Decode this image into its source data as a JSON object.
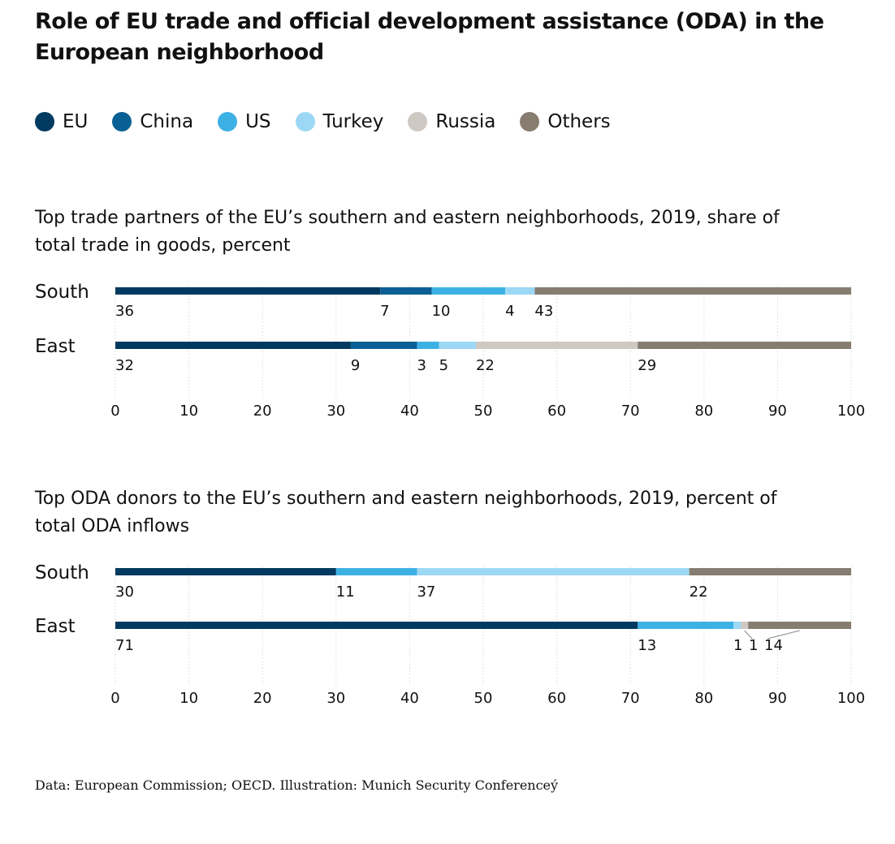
{
  "title": "Role of EU trade and official development assistance (ODA) in the European neighborhood",
  "legend": [
    {
      "name": "EU",
      "color": "#003a60"
    },
    {
      "name": "China",
      "color": "#0a6094"
    },
    {
      "name": "US",
      "color": "#3eb1e4"
    },
    {
      "name": "Turkey",
      "color": "#9cd8f5"
    },
    {
      "name": "Russia",
      "color": "#cfc9c4"
    },
    {
      "name": "Others",
      "color": "#877c70"
    }
  ],
  "source": "Data: European Commission; OECD. Illustration: Munich Security Conferenceý",
  "chart_data": [
    {
      "type": "bar",
      "stacked": true,
      "orientation": "horizontal",
      "title": "Top trade partners of the EU’s southern and eastern neighborhoods, 2019, share of total trade in goods, percent",
      "categories": [
        "South",
        "East"
      ],
      "xlim": [
        0,
        100
      ],
      "xticks": [
        0,
        10,
        20,
        30,
        40,
        50,
        60,
        70,
        80,
        90,
        100
      ],
      "grid": true,
      "series": [
        {
          "name": "EU",
          "values": [
            36,
            32
          ]
        },
        {
          "name": "China",
          "values": [
            7,
            9
          ]
        },
        {
          "name": "US",
          "values": [
            10,
            3
          ]
        },
        {
          "name": "Turkey",
          "values": [
            4,
            5
          ]
        },
        {
          "name": "Russia",
          "values": [
            0,
            22
          ]
        },
        {
          "name": "Others",
          "values": [
            43,
            29
          ]
        }
      ]
    },
    {
      "type": "bar",
      "stacked": true,
      "orientation": "horizontal",
      "title": "Top ODA donors to the EU’s southern and eastern neighborhoods, 2019, percent of total ODA inflows",
      "categories": [
        "South",
        "East"
      ],
      "xlim": [
        0,
        100
      ],
      "xticks": [
        0,
        10,
        20,
        30,
        40,
        50,
        60,
        70,
        80,
        90,
        100
      ],
      "grid": true,
      "series": [
        {
          "name": "EU",
          "values": [
            30,
            71
          ]
        },
        {
          "name": "China",
          "values": [
            0,
            0
          ]
        },
        {
          "name": "US",
          "values": [
            11,
            13
          ]
        },
        {
          "name": "Turkey",
          "values": [
            37,
            1
          ]
        },
        {
          "name": "Russia",
          "values": [
            0,
            1
          ]
        },
        {
          "name": "Others",
          "values": [
            22,
            14
          ]
        }
      ]
    }
  ]
}
